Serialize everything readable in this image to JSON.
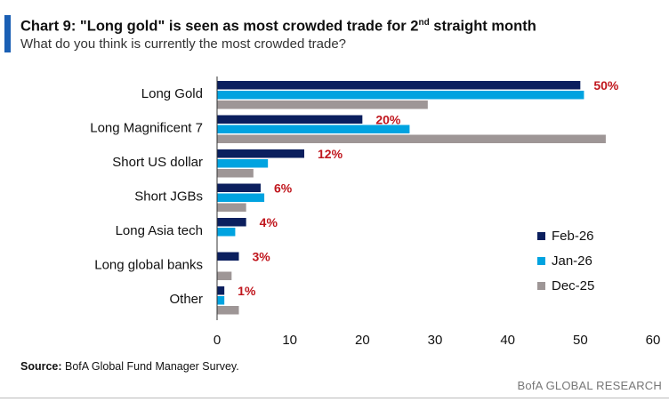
{
  "header": {
    "title_main": "Chart 9: \"Long gold\" is seen as most crowded trade for 2",
    "title_sup": "nd",
    "title_tail": " straight month",
    "subtitle": "What do you think is currently the most crowded trade?"
  },
  "footer": {
    "source_label": "Source:",
    "source_text": " BofA Global Fund Manager Survey.",
    "brand": "BofA GLOBAL RESEARCH"
  },
  "colors": {
    "feb26": "#0b1f5e",
    "jan26": "#00a3e0",
    "dec25": "#9e9696",
    "label": "#c0161d"
  },
  "chart_data": {
    "type": "bar",
    "orientation": "horizontal",
    "categories": [
      "Long Gold",
      "Long Magnificent 7",
      "Short US dollar",
      "Short JGBs",
      "Long Asia tech",
      "Long global banks",
      "Other"
    ],
    "series": [
      {
        "name": "Feb-26",
        "values": [
          50,
          20,
          12,
          6,
          4,
          3,
          1
        ]
      },
      {
        "name": "Jan-26",
        "values": [
          50.5,
          26.5,
          7,
          6.5,
          2.5,
          0,
          1
        ]
      },
      {
        "name": "Dec-25",
        "values": [
          29,
          53.5,
          5,
          4,
          0,
          2,
          3
        ]
      }
    ],
    "data_labels": [
      "50%",
      "20%",
      "12%",
      "6%",
      "4%",
      "3%",
      "1%"
    ],
    "xlim": [
      0,
      60
    ],
    "xticks": [
      "0",
      "10",
      "20",
      "30",
      "40",
      "50",
      "60"
    ],
    "grid": false,
    "legend_position": "bottom-right"
  }
}
